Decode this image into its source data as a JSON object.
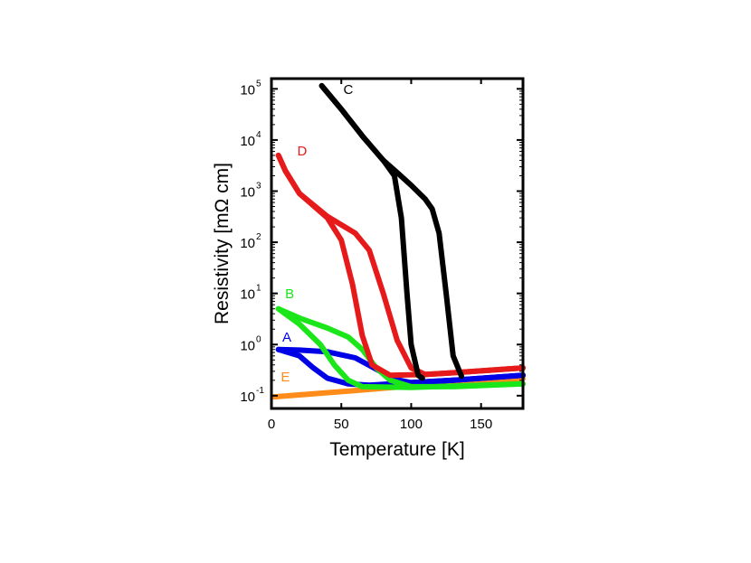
{
  "chart_data": {
    "type": "line",
    "title": "",
    "xlabel": "Temperature [K]",
    "ylabel": "Resistivity [mΩ cm]",
    "xlim": [
      0,
      180
    ],
    "ylim_log10": [
      -1.25,
      5.2
    ],
    "yscale": "log",
    "x_ticks": [
      0,
      50,
      100,
      150
    ],
    "x_tick_labels": [
      "0",
      "50",
      "100",
      "150"
    ],
    "y_ticks": [
      {
        "base": "10",
        "exp": "-1",
        "value": 0.1
      },
      {
        "base": "10",
        "exp": "0",
        "value": 1
      },
      {
        "base": "10",
        "exp": "1",
        "value": 10
      },
      {
        "base": "10",
        "exp": "2",
        "value": 100
      },
      {
        "base": "10",
        "exp": "3",
        "value": 1000
      },
      {
        "base": "10",
        "exp": "4",
        "value": 10000
      },
      {
        "base": "10",
        "exp": "5",
        "value": 100000
      }
    ],
    "series": [
      {
        "name": "E",
        "color": "#ff8c1a",
        "label_at": [
          10,
          0.19
        ],
        "branches": [
          [
            [
              2,
              0.095
            ],
            [
              50,
              0.12
            ],
            [
              100,
              0.155
            ],
            [
              150,
              0.195
            ],
            [
              180,
              0.215
            ]
          ]
        ]
      },
      {
        "name": "A",
        "color": "#0000e6",
        "label_at": [
          11,
          1.15
        ],
        "branches": [
          [
            [
              5,
              0.8
            ],
            [
              20,
              0.78
            ],
            [
              40,
              0.72
            ],
            [
              60,
              0.55
            ],
            [
              75,
              0.33
            ],
            [
              88,
              0.21
            ],
            [
              100,
              0.18
            ],
            [
              130,
              0.2
            ],
            [
              180,
              0.25
            ]
          ],
          [
            [
              5,
              0.8
            ],
            [
              20,
              0.6
            ],
            [
              30,
              0.35
            ],
            [
              40,
              0.22
            ],
            [
              55,
              0.17
            ],
            [
              70,
              0.16
            ],
            [
              100,
              0.18
            ],
            [
              130,
              0.2
            ],
            [
              180,
              0.25
            ]
          ]
        ]
      },
      {
        "name": "B",
        "color": "#1ae61a",
        "label_at": [
          13,
          8.0
        ],
        "branches": [
          [
            [
              5,
              5.0
            ],
            [
              20,
              3.3
            ],
            [
              40,
              2.1
            ],
            [
              55,
              1.4
            ],
            [
              65,
              0.8
            ],
            [
              75,
              0.35
            ],
            [
              85,
              0.2
            ],
            [
              100,
              0.15
            ],
            [
              130,
              0.15
            ],
            [
              180,
              0.17
            ]
          ],
          [
            [
              5,
              5.0
            ],
            [
              20,
              2.5
            ],
            [
              35,
              1.0
            ],
            [
              45,
              0.4
            ],
            [
              55,
              0.2
            ],
            [
              65,
              0.15
            ],
            [
              100,
              0.145
            ],
            [
              180,
              0.17
            ]
          ]
        ]
      },
      {
        "name": "D",
        "color": "#e61a1a",
        "label_at": [
          22,
          5000
        ],
        "branches": [
          [
            [
              5,
              5000
            ],
            [
              10,
              2500
            ],
            [
              20,
              900
            ],
            [
              40,
              320
            ],
            [
              60,
              150
            ],
            [
              70,
              70
            ],
            [
              80,
              10
            ],
            [
              90,
              1.2
            ],
            [
              100,
              0.35
            ],
            [
              110,
              0.26
            ],
            [
              130,
              0.28
            ],
            [
              180,
              0.35
            ]
          ],
          [
            [
              5,
              5000
            ],
            [
              10,
              2500
            ],
            [
              20,
              900
            ],
            [
              40,
              300
            ],
            [
              50,
              110
            ],
            [
              58,
              15
            ],
            [
              65,
              1.5
            ],
            [
              72,
              0.4
            ],
            [
              85,
              0.25
            ],
            [
              110,
              0.26
            ],
            [
              130,
              0.28
            ],
            [
              180,
              0.35
            ]
          ]
        ]
      },
      {
        "name": "C",
        "color": "#000000",
        "label_at": [
          55,
          80000
        ],
        "branches": [
          [
            [
              36,
              115000
            ],
            [
              50,
              40000
            ],
            [
              65,
              12000
            ],
            [
              80,
              4000
            ],
            [
              90,
              2300
            ],
            [
              100,
              1300
            ],
            [
              110,
              700
            ],
            [
              115,
              450
            ],
            [
              120,
              150
            ],
            [
              125,
              10
            ],
            [
              130,
              0.6
            ],
            [
              136,
              0.24
            ]
          ],
          [
            [
              36,
              115000
            ],
            [
              50,
              40000
            ],
            [
              65,
              12000
            ],
            [
              80,
              4000
            ],
            [
              88,
              2000
            ],
            [
              93,
              300
            ],
            [
              97,
              10
            ],
            [
              100,
              1
            ],
            [
              105,
              0.25
            ],
            [
              108,
              0.22
            ]
          ]
        ]
      }
    ]
  }
}
